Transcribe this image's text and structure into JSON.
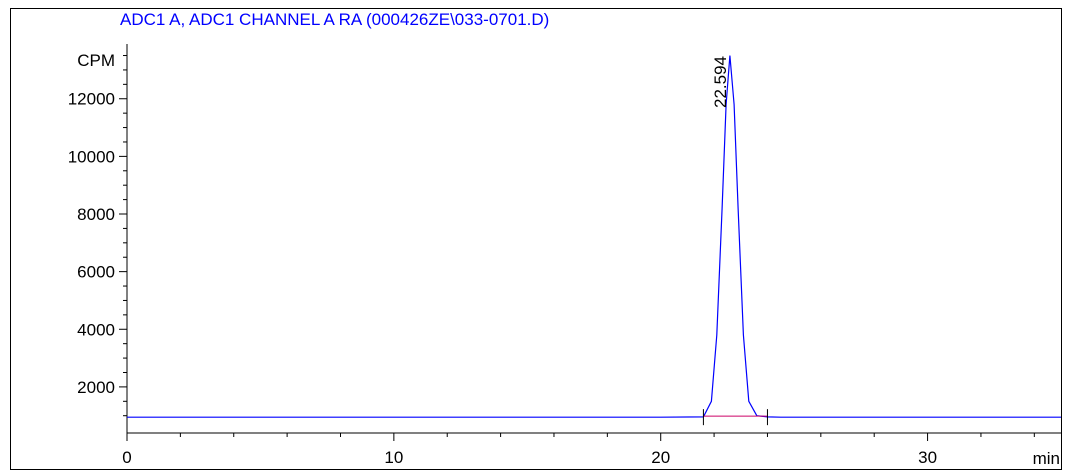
{
  "chart_data": {
    "type": "line",
    "title": "ADC1 A, ADC1 CHANNEL A RA (000426ZE\\033-0701.D)",
    "ylabel": "CPM",
    "xlabel": "min",
    "xlim": [
      0,
      35
    ],
    "ylim": [
      400,
      13900
    ],
    "x_ticks": [
      0,
      10,
      20,
      30
    ],
    "y_ticks": [
      2000,
      4000,
      6000,
      8000,
      10000,
      12000
    ],
    "grid": false,
    "series": [
      {
        "color": "#0000ff",
        "x": [
          0,
          5,
          10,
          15,
          20,
          21.6,
          21.9,
          22.1,
          22.3,
          22.45,
          22.594,
          22.75,
          22.9,
          23.1,
          23.3,
          23.6,
          24.0,
          24.5,
          30,
          35
        ],
        "y": [
          950,
          950,
          950,
          950,
          950,
          960,
          1500,
          3800,
          8200,
          11800,
          13500,
          11800,
          8200,
          3800,
          1500,
          1000,
          960,
          950,
          950,
          950
        ]
      }
    ],
    "baseline": {
      "color": "#cc0066",
      "x": [
        21.6,
        24.0
      ],
      "y": [
        950,
        950
      ]
    },
    "peaks": [
      {
        "x": 22.594,
        "label": "22.594"
      }
    ],
    "integration_markers": [
      21.6,
      24.0
    ]
  }
}
